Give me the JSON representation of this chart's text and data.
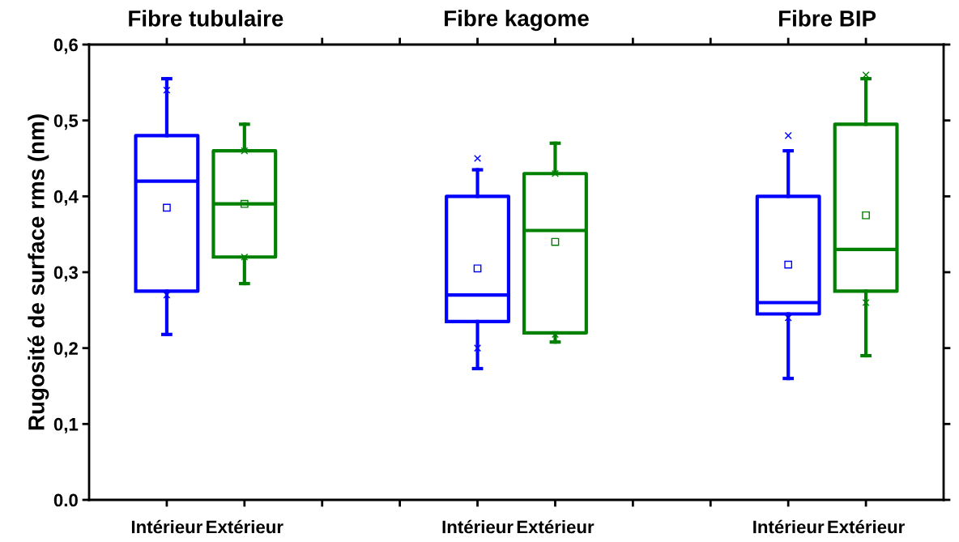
{
  "chart_data": {
    "type": "box",
    "ylabel": "Rugosité de surface rms (nm)",
    "annotations": [
      "Fibre tubulaire",
      "Fibre kagome",
      "Fibre BIP"
    ],
    "categories": [
      "Intérieur",
      "Extérieur",
      null,
      null,
      "Intérieur",
      "Extérieur",
      null,
      null,
      "Intérieur",
      "Extérieur"
    ],
    "boxes": [
      {
        "low": 0.218,
        "q1": 0.275,
        "median": 0.42,
        "q3": 0.48,
        "high": 0.555,
        "mean": 0.385,
        "outliers": [
          0.54,
          0.27
        ]
      },
      {
        "low": 0.285,
        "q1": 0.32,
        "median": 0.39,
        "q3": 0.46,
        "high": 0.495,
        "mean": 0.39,
        "outliers": [
          0.46,
          0.32
        ]
      },
      null,
      null,
      {
        "low": 0.173,
        "q1": 0.235,
        "median": 0.27,
        "q3": 0.4,
        "high": 0.435,
        "mean": 0.305,
        "outliers": [
          0.45,
          0.2
        ]
      },
      {
        "low": 0.208,
        "q1": 0.22,
        "median": 0.355,
        "q3": 0.43,
        "high": 0.47,
        "mean": 0.34,
        "outliers": [
          0.43,
          0.218
        ]
      },
      null,
      null,
      {
        "low": 0.16,
        "q1": 0.245,
        "median": 0.26,
        "q3": 0.4,
        "high": 0.46,
        "mean": 0.31,
        "outliers": [
          0.48,
          0.24
        ]
      },
      {
        "low": 0.19,
        "q1": 0.275,
        "median": 0.33,
        "q3": 0.495,
        "high": 0.555,
        "mean": 0.375,
        "outliers": [
          0.56,
          0.26
        ]
      }
    ],
    "colors": [
      "#0000ff",
      "#008000",
      null,
      null,
      "#0000ff",
      "#008000",
      null,
      null,
      "#0000ff",
      "#008000"
    ],
    "ylim": [
      0.0,
      0.6
    ],
    "yticks": [
      {
        "value": 0.0,
        "label": "0.0"
      },
      {
        "value": 0.1,
        "label": "0,1"
      },
      {
        "value": 0.2,
        "label": "0,2"
      },
      {
        "value": 0.3,
        "label": "0,3"
      },
      {
        "value": 0.4,
        "label": "0,4"
      },
      {
        "value": 0.5,
        "label": "0,5"
      },
      {
        "value": 0.6,
        "label": "0,6"
      }
    ],
    "grid": false
  }
}
